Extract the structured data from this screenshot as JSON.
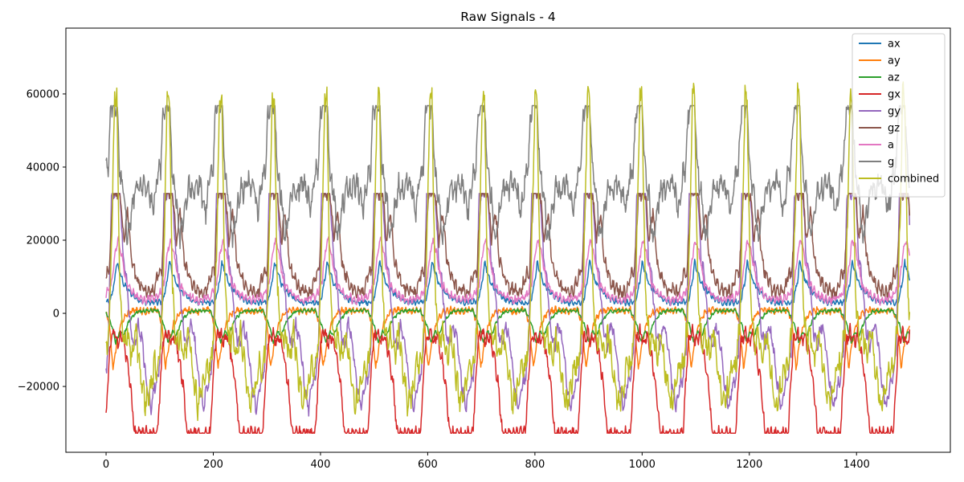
{
  "chart_data": {
    "type": "line",
    "title": "Raw Signals - 4",
    "xlabel": "",
    "ylabel": "",
    "xlim": [
      -75,
      1575
    ],
    "ylim": [
      -38000,
      78000
    ],
    "x_ticks": [
      0,
      200,
      400,
      600,
      800,
      1000,
      1200,
      1400
    ],
    "y_ticks": [
      -20000,
      0,
      20000,
      40000,
      60000
    ],
    "grid": false,
    "legend_position": "top-right",
    "period": 98,
    "n_samples": 1500,
    "series": [
      {
        "name": "ax",
        "color": "#1f77b4",
        "cycle_profile": [
          [
            0,
            3000
          ],
          [
            10,
            3200
          ],
          [
            18,
            9000
          ],
          [
            22,
            14000
          ],
          [
            28,
            11000
          ],
          [
            35,
            8000
          ],
          [
            45,
            6000
          ],
          [
            60,
            4000
          ],
          [
            75,
            3000
          ],
          [
            98,
            3000
          ]
        ]
      },
      {
        "name": "ay",
        "color": "#ff7f0e",
        "cycle_profile": [
          [
            0,
            1000
          ],
          [
            8,
            -3000
          ],
          [
            15,
            -15000
          ],
          [
            22,
            -8000
          ],
          [
            30,
            -3000
          ],
          [
            40,
            0
          ],
          [
            55,
            1000
          ],
          [
            75,
            500
          ],
          [
            98,
            1000
          ]
        ]
      },
      {
        "name": "az",
        "color": "#2ca02c",
        "cycle_profile": [
          [
            0,
            800
          ],
          [
            12,
            -3000
          ],
          [
            20,
            -8000
          ],
          [
            28,
            -5000
          ],
          [
            35,
            -6000
          ],
          [
            45,
            -2000
          ],
          [
            60,
            500
          ],
          [
            80,
            800
          ],
          [
            98,
            800
          ]
        ]
      },
      {
        "name": "gx",
        "color": "#d62728",
        "cycle_profile": [
          [
            0,
            -33000
          ],
          [
            5,
            -20000
          ],
          [
            10,
            -8000
          ],
          [
            18,
            -5000
          ],
          [
            25,
            -8000
          ],
          [
            32,
            -6000
          ],
          [
            40,
            -12000
          ],
          [
            48,
            -20000
          ],
          [
            55,
            -33000
          ],
          [
            98,
            -33000
          ]
        ]
      },
      {
        "name": "gy",
        "color": "#9467bd",
        "cycle_profile": [
          [
            0,
            -18000
          ],
          [
            6,
            -10000
          ],
          [
            12,
            33000
          ],
          [
            28,
            33000
          ],
          [
            34,
            15000
          ],
          [
            40,
            10000
          ],
          [
            48,
            -5000
          ],
          [
            55,
            -9000
          ],
          [
            62,
            -3000
          ],
          [
            70,
            -8000
          ],
          [
            78,
            -20000
          ],
          [
            86,
            -26000
          ],
          [
            92,
            -20000
          ],
          [
            98,
            -18000
          ]
        ]
      },
      {
        "name": "gz",
        "color": "#8c564b",
        "cycle_profile": [
          [
            0,
            10000
          ],
          [
            8,
            12000
          ],
          [
            15,
            33000
          ],
          [
            28,
            33000
          ],
          [
            35,
            20000
          ],
          [
            42,
            28000
          ],
          [
            50,
            14000
          ],
          [
            58,
            10000
          ],
          [
            68,
            7000
          ],
          [
            80,
            6000
          ],
          [
            90,
            5500
          ],
          [
            98,
            10000
          ]
        ]
      },
      {
        "name": "a",
        "color": "#e377c2",
        "cycle_profile": [
          [
            0,
            4500
          ],
          [
            12,
            8000
          ],
          [
            20,
            18000
          ],
          [
            25,
            20000
          ],
          [
            32,
            15000
          ],
          [
            40,
            8000
          ],
          [
            55,
            5000
          ],
          [
            75,
            3500
          ],
          [
            98,
            4500
          ]
        ]
      },
      {
        "name": "g",
        "color": "#7f7f7f",
        "cycle_profile": [
          [
            0,
            38000
          ],
          [
            6,
            40000
          ],
          [
            10,
            55000
          ],
          [
            14,
            57000
          ],
          [
            22,
            57000
          ],
          [
            28,
            38000
          ],
          [
            35,
            32000
          ],
          [
            42,
            20000
          ],
          [
            50,
            28000
          ],
          [
            58,
            35000
          ],
          [
            65,
            33000
          ],
          [
            72,
            36000
          ],
          [
            80,
            35000
          ],
          [
            90,
            28000
          ],
          [
            98,
            38000
          ]
        ]
      },
      {
        "name": "combined",
        "color": "#bcbd22",
        "cycle_profile": [
          [
            0,
            -15000
          ],
          [
            8,
            -4000
          ],
          [
            14,
            30000
          ],
          [
            18,
            60000
          ],
          [
            22,
            58000
          ],
          [
            28,
            5000
          ],
          [
            35,
            -8000
          ],
          [
            42,
            -6000
          ],
          [
            50,
            -12000
          ],
          [
            58,
            -5000
          ],
          [
            65,
            -15000
          ],
          [
            75,
            -25000
          ],
          [
            85,
            -20000
          ],
          [
            92,
            -14000
          ],
          [
            98,
            -15000
          ]
        ]
      }
    ]
  }
}
